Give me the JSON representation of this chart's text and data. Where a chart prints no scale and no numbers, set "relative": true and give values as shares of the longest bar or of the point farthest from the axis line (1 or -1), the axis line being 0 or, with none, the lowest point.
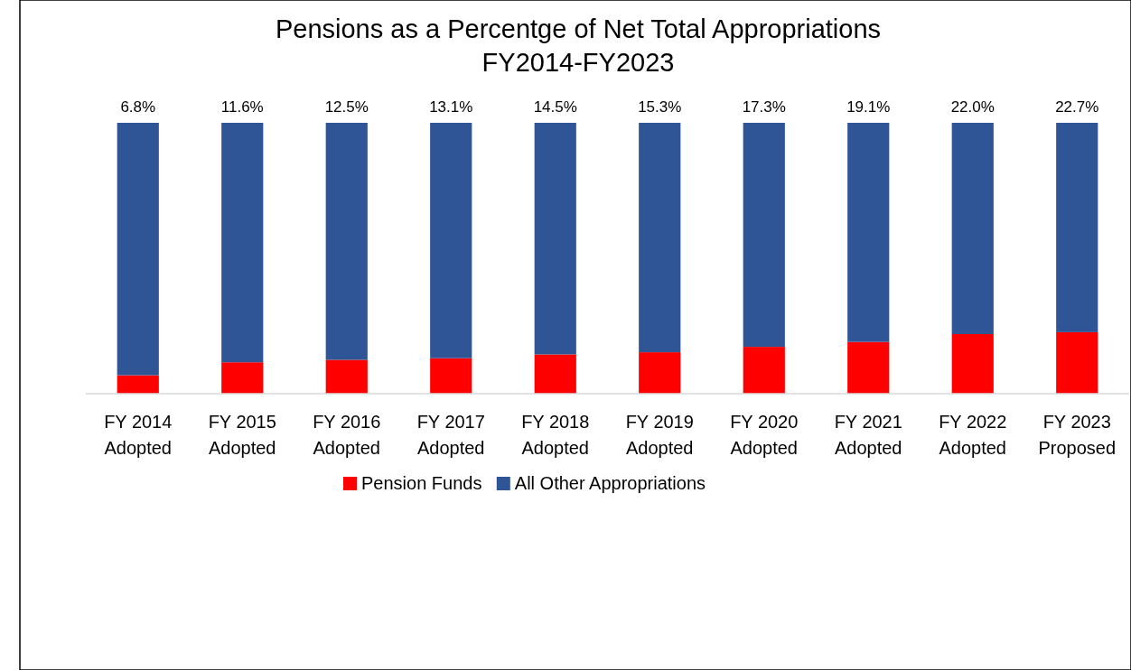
{
  "chart_data": {
    "type": "bar",
    "stacked": true,
    "relative": true,
    "title": "Pensions as a Percentge of Net Total Appropriations FY2014-FY2023",
    "categories": [
      "FY 2014 Adopted",
      "FY 2015 Adopted",
      "FY 2016 Adopted",
      "FY 2017 Adopted",
      "FY 2018 Adopted",
      "FY 2019 Adopted",
      "FY 2020 Adopted",
      "FY 2021 Adopted",
      "FY 2022 Adopted",
      "FY 2023 Proposed"
    ],
    "series": [
      {
        "name": "Pension Funds",
        "color": "#ff0000",
        "values": [
          0.068,
          0.116,
          0.125,
          0.131,
          0.145,
          0.153,
          0.173,
          0.191,
          0.22,
          0.227
        ]
      },
      {
        "name": "All Other Appropriations",
        "color": "#2f5597",
        "values": [
          0.932,
          0.884,
          0.875,
          0.869,
          0.855,
          0.847,
          0.827,
          0.809,
          0.78,
          0.773
        ]
      }
    ],
    "annotations": [
      "6.8%",
      "11.6%",
      "12.5%",
      "13.1%",
      "14.5%",
      "15.3%",
      "17.3%",
      "19.1%",
      "22.0%",
      "22.7%"
    ],
    "legend": "bottom",
    "tick_labels": "x"
  }
}
